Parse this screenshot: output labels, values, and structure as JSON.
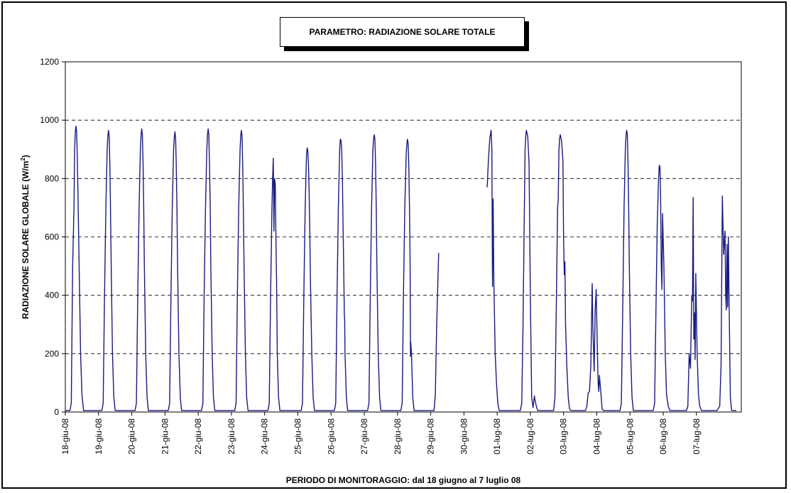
{
  "chart_data": {
    "type": "line",
    "title": "PARAMETRO: RADIAZIONE SOLARE TOTALE",
    "xlabel": "PERIODO DI MONITORAGGIO: dal 18 giugno al 7 luglio 08",
    "ylabel_main": "RADIAZIONE SOLARE GLOBALE (W/m",
    "ylabel_sup": "2",
    "ylabel_end": ")",
    "ylim": [
      0,
      1200
    ],
    "yticks": [
      "0",
      "200",
      "400",
      "600",
      "800",
      "1000",
      "1200"
    ],
    "categories": [
      "18-giu-08",
      "19-giu-08",
      "20-giu-08",
      "21-giu-08",
      "22-giu-08",
      "23-giu-08",
      "24-giu-08",
      "25-giu-08",
      "26-giu-08",
      "27-giu-08",
      "28-giu-08",
      "29-giu-08",
      "30-giu-08",
      "01-lug-08",
      "02-lug-08",
      "03-lug-08",
      "04-lug-08",
      "05-lug-08",
      "06-lug-08",
      "07-lug-08"
    ],
    "grid": "horizontal-dashed",
    "line_color": "#1a1a80",
    "series": [
      {
        "x": [
          0,
          0.1,
          0.14,
          0.18,
          0.22,
          0.26,
          0.28,
          0.3,
          0.32,
          0.34,
          0.36,
          0.38,
          0.42,
          0.46,
          0.5,
          0.55,
          0.6,
          0.65,
          0.7,
          0.75,
          0.8,
          0.85,
          0.9,
          0.95,
          1.1,
          1.14,
          1.18,
          1.22,
          1.26,
          1.28,
          1.3,
          1.32,
          1.34,
          1.36,
          1.38,
          1.42,
          1.46,
          1.5,
          1.55,
          1.6,
          1.7,
          1.8,
          1.9,
          1.95,
          2.1,
          2.14,
          2.18,
          2.22,
          2.26,
          2.28,
          2.3,
          2.32,
          2.34,
          2.36,
          2.38,
          2.42,
          2.46,
          2.5,
          2.55,
          2.6,
          2.7,
          2.8,
          2.9,
          2.95,
          3.1,
          3.14,
          3.18,
          3.22,
          3.26,
          3.28,
          3.3,
          3.32,
          3.34,
          3.36,
          3.38,
          3.42,
          3.46,
          3.5,
          3.55,
          3.6,
          3.7,
          3.8,
          3.9,
          3.95,
          4.1,
          4.14,
          4.18,
          4.22,
          4.26,
          4.28,
          4.3,
          4.32,
          4.34,
          4.36,
          4.38,
          4.42,
          4.46,
          4.5,
          4.55,
          4.6,
          4.7,
          4.8,
          4.9,
          4.95,
          5.1,
          5.14,
          5.18,
          5.22,
          5.26,
          5.28,
          5.3,
          5.32,
          5.34,
          5.36,
          5.38,
          5.42,
          5.46,
          5.5,
          5.55,
          5.6,
          5.7,
          5.8,
          5.9,
          5.95,
          6.1,
          6.14,
          6.18,
          6.22,
          6.24,
          6.26,
          6.28,
          6.3,
          6.32,
          6.34,
          6.36,
          6.38,
          6.42,
          6.46,
          6.5,
          6.55,
          6.6,
          6.7,
          6.8,
          6.9,
          6.95,
          7.1,
          7.14,
          7.18,
          7.22,
          7.26,
          7.28,
          7.3,
          7.32,
          7.34,
          7.36,
          7.38,
          7.42,
          7.46,
          7.5,
          7.55,
          7.6,
          7.7,
          7.8,
          7.9,
          7.95,
          8.1,
          8.14,
          8.18,
          8.22,
          8.26,
          8.28,
          8.3,
          8.32,
          8.34,
          8.36,
          8.38,
          8.4,
          8.41,
          8.42,
          8.46,
          8.5,
          8.55,
          8.6,
          8.7,
          8.8,
          8.9,
          8.95,
          9.1,
          9.14,
          9.18,
          9.22,
          9.26,
          9.28,
          9.3,
          9.32,
          9.34,
          9.36,
          9.38,
          9.42,
          9.46,
          9.5,
          9.55,
          9.6,
          9.7,
          9.8,
          9.9,
          9.95,
          10.1,
          10.14,
          10.18,
          10.22,
          10.26,
          10.28,
          10.3,
          10.32,
          10.34,
          10.36,
          10.38,
          10.39,
          10.4,
          10.42,
          10.46,
          10.5,
          10.55,
          10.6,
          10.7,
          10.8,
          10.9,
          10.95,
          11.1,
          11.14,
          11.18,
          11.24,
          null,
          12.7,
          12.74,
          12.78,
          12.82,
          12.84,
          12.86,
          12.88,
          12.9,
          12.94,
          12.98,
          13.02,
          13.06,
          13.1,
          13.16,
          13.2,
          13.3,
          13.4,
          13.5,
          13.55,
          13.7,
          13.74,
          13.78,
          13.82,
          13.84,
          13.86,
          13.88,
          13.92,
          13.96,
          14.0,
          14.04,
          14.08,
          14.12,
          14.14,
          14.18,
          14.22,
          14.26,
          14.3,
          14.4,
          14.5,
          14.55,
          14.7,
          14.74,
          14.78,
          14.82,
          14.84,
          14.86,
          14.88,
          14.9,
          14.94,
          14.98,
          15.0,
          15.02,
          15.04,
          15.06,
          15.1,
          15.14,
          15.18,
          15.22,
          15.3,
          15.4,
          15.5,
          15.55,
          15.66,
          15.7,
          15.74,
          15.78,
          15.82,
          15.86,
          15.88,
          15.92,
          15.95,
          15.98,
          16.02,
          16.04,
          16.06,
          16.08,
          16.12,
          16.16,
          16.2,
          16.3,
          16.4,
          16.5,
          16.55,
          16.7,
          16.74,
          16.78,
          16.82,
          16.86,
          16.88,
          16.9,
          16.92,
          16.94,
          16.96,
          16.98,
          17.02,
          17.06,
          17.1,
          17.15,
          17.2,
          17.3,
          17.4,
          17.5,
          17.55,
          17.7,
          17.74,
          17.78,
          17.82,
          17.86,
          17.88,
          17.9,
          17.92,
          17.94,
          17.96,
          17.98,
          18.02,
          18.06,
          18.1,
          18.15,
          18.2,
          18.3,
          18.4,
          18.5,
          18.55,
          18.7,
          18.74,
          18.78,
          18.82,
          18.86,
          18.88,
          18.9,
          18.92,
          18.94,
          18.96,
          18.98,
          19.02,
          19.06,
          19.1,
          19.15,
          19.2,
          19.3,
          19.4,
          19.5,
          19.55,
          19.6,
          19.62,
          19.7,
          19.74,
          19.78,
          19.82,
          19.86,
          19.88,
          19.9,
          19.92,
          19.94,
          19.96,
          19.98,
          20.02,
          20.06,
          20.1,
          20.15,
          20.2
        ],
        "y": [
          5,
          5,
          5,
          30,
          500,
          700,
          900,
          960,
          980,
          960,
          880,
          750,
          480,
          200,
          60,
          5,
          5,
          5,
          5,
          5,
          5,
          5,
          5,
          5,
          5,
          30,
          400,
          700,
          900,
          945,
          965,
          945,
          850,
          700,
          500,
          200,
          50,
          5,
          5,
          5,
          5,
          5,
          5,
          5,
          5,
          30,
          400,
          700,
          900,
          950,
          970,
          950,
          850,
          700,
          500,
          200,
          50,
          5,
          5,
          5,
          5,
          5,
          5,
          5,
          5,
          30,
          400,
          700,
          900,
          940,
          960,
          940,
          850,
          700,
          500,
          200,
          50,
          5,
          5,
          5,
          5,
          5,
          5,
          5,
          5,
          30,
          400,
          700,
          900,
          950,
          970,
          950,
          850,
          720,
          500,
          200,
          50,
          5,
          5,
          5,
          5,
          5,
          5,
          5,
          5,
          30,
          400,
          700,
          900,
          945,
          965,
          945,
          850,
          700,
          500,
          200,
          50,
          5,
          5,
          5,
          5,
          5,
          5,
          5,
          5,
          30,
          400,
          700,
          800,
          870,
          620,
          800,
          780,
          600,
          450,
          200,
          50,
          5,
          5,
          5,
          5,
          5,
          5,
          5,
          5,
          5,
          30,
          400,
          700,
          880,
          905,
          895,
          850,
          750,
          620,
          450,
          200,
          50,
          5,
          5,
          5,
          5,
          5,
          5,
          5,
          5,
          30,
          400,
          700,
          900,
          935,
          930,
          900,
          800,
          650,
          500,
          330,
          320,
          200,
          50,
          5,
          5,
          5,
          5,
          5,
          5,
          5,
          5,
          30,
          400,
          700,
          900,
          935,
          950,
          935,
          850,
          700,
          500,
          200,
          50,
          5,
          5,
          5,
          5,
          5,
          5,
          5,
          5,
          30,
          400,
          700,
          880,
          915,
          935,
          920,
          850,
          700,
          500,
          190,
          240,
          200,
          50,
          5,
          5,
          5,
          5,
          5,
          5,
          5,
          5,
          60,
          300,
          545,
          null,
          770,
          870,
          940,
          965,
          900,
          430,
          730,
          450,
          200,
          100,
          30,
          5,
          5,
          5,
          5,
          5,
          5,
          5,
          5,
          5,
          30,
          300,
          700,
          900,
          945,
          965,
          945,
          850,
          400,
          50,
          15,
          55,
          40,
          20,
          5,
          5,
          5,
          5,
          5,
          5,
          5,
          50,
          350,
          700,
          730,
          900,
          935,
          950,
          930,
          860,
          600,
          470,
          515,
          300,
          150,
          50,
          10,
          5,
          5,
          5,
          5,
          5,
          5,
          20,
          65,
          70,
          160,
          440,
          300,
          140,
          350,
          420,
          200,
          100,
          70,
          125,
          70,
          10,
          5,
          5,
          5,
          5,
          5,
          5,
          30,
          350,
          700,
          900,
          950,
          965,
          950,
          850,
          700,
          500,
          200,
          50,
          5,
          5,
          5,
          5,
          5,
          5,
          5,
          5,
          30,
          350,
          640,
          800,
          845,
          840,
          750,
          500,
          420,
          680,
          500,
          200,
          60,
          20,
          5,
          5,
          5,
          5,
          5,
          5,
          20,
          200,
          150,
          400,
          380,
          735,
          250,
          340,
          180,
          475,
          200,
          60,
          20,
          5,
          5,
          5,
          5,
          5,
          5,
          5,
          5,
          20,
          160,
          740,
          540,
          620,
          400,
          350,
          575,
          360,
          600,
          400,
          50,
          5,
          5,
          5,
          5
        ]
      }
    ]
  }
}
